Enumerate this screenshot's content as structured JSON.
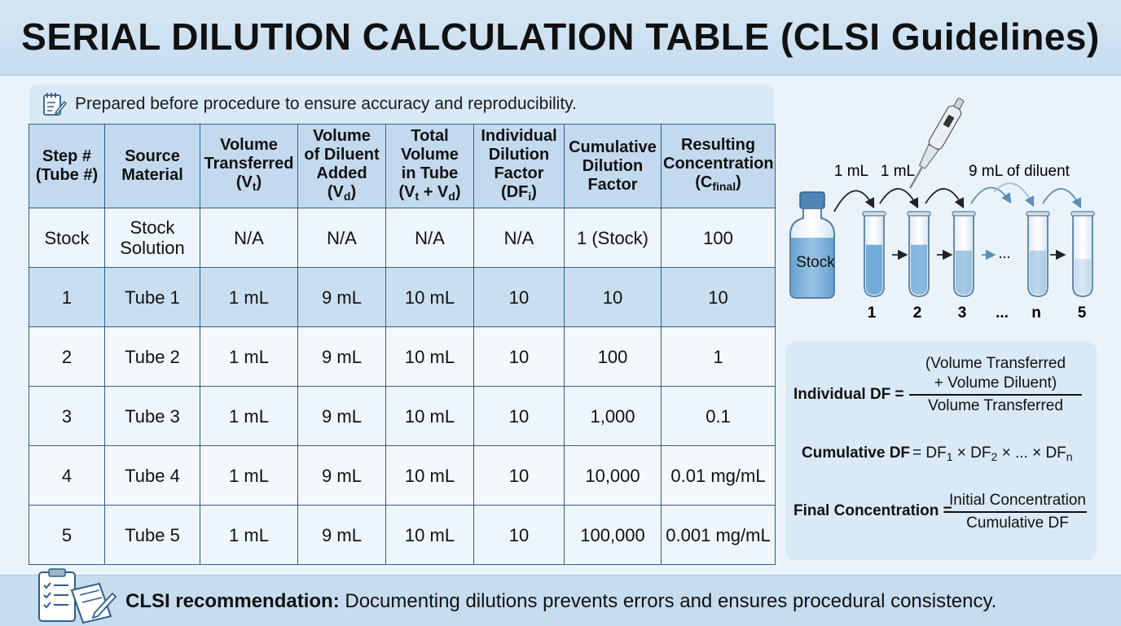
{
  "title": "SERIAL DILUTION CALCULATION TABLE (CLSI Guidelines)",
  "note": {
    "icon": "notepad-pencil-icon",
    "text": "Prepared before procedure to ensure accuracy and reproducibility."
  },
  "table": {
    "headers": [
      {
        "main": "Step #",
        "line2": "(Tube #)",
        "sub": "",
        "tail": ""
      },
      {
        "main": "Source",
        "line2": "Material",
        "sub": "",
        "tail": ""
      },
      {
        "main": "Volume",
        "line2": "Transferred",
        "line3": "(V",
        "sub": "t",
        "tail": ")"
      },
      {
        "main": "Volume",
        "line2": "of Diluent",
        "line3a": "Added",
        "line3": "(V",
        "sub": "d",
        "tail": ")"
      },
      {
        "main": "Total",
        "line2": "Volume",
        "line3a": "in Tube",
        "line3": "(V",
        "sub": "t",
        "mid": " + V",
        "sub2": "d",
        "tail": ")"
      },
      {
        "main": "Individual",
        "line2": "Dilution",
        "line3a": "Factor",
        "line3": "(DF",
        "sub": "i",
        "tail": ")"
      },
      {
        "main": "Cumulative",
        "line2": "Dilution",
        "line3a": "Factor",
        "sub": "",
        "tail": ""
      },
      {
        "main": "Resulting",
        "line2": "Concentration",
        "line3": "(C",
        "sub": "final",
        "tail": ")"
      }
    ],
    "rows": [
      [
        "Stock",
        "Stock\nSolution",
        "N/A",
        "N/A",
        "N/A",
        "N/A",
        "1 (Stock)",
        "100"
      ],
      [
        "1",
        "Tube 1",
        "1 mL",
        "9 mL",
        "10 mL",
        "10",
        "10",
        "10"
      ],
      [
        "2",
        "Tube 2",
        "1 mL",
        "9 mL",
        "10 mL",
        "10",
        "100",
        "1"
      ],
      [
        "3",
        "Tube 3",
        "1 mL",
        "9 mL",
        "10 mL",
        "10",
        "1,000",
        "0.1"
      ],
      [
        "4",
        "Tube 4",
        "1 mL",
        "9 mL",
        "10 mL",
        "10",
        "10,000",
        "0.01 mg/mL"
      ],
      [
        "5",
        "Tube 5",
        "1 mL",
        "9 mL",
        "10 mL",
        "10",
        "100,000",
        "0.001 mg/mL"
      ]
    ]
  },
  "diagram": {
    "transfer_label_1": "1 mL",
    "transfer_label_2": "1 mL",
    "diluent_label": "9 mL of diluent",
    "stock_label": "Stock",
    "ellipsis": "...",
    "tube_labels": [
      "1",
      "2",
      "3",
      "...",
      "n",
      "5"
    ],
    "icons": [
      "stock-bottle-icon",
      "pipette-icon",
      "test-tube-icon"
    ],
    "liquid_color": "#6aa6d4"
  },
  "formulas": {
    "individual_label": "Individual DF =",
    "individual_num_1": "(Volume Transferred",
    "individual_num_2": "+ Volume Diluent)",
    "individual_den": "Volume Transferred",
    "cumulative_label": "Cumulative DF",
    "cumulative_eq": "=",
    "cumulative_rhs_df": "DF",
    "cumulative_rhs_1": "1",
    "cumulative_rhs_times": " × DF",
    "cumulative_rhs_2": "2",
    "cumulative_rhs_mid": " × ... × DF",
    "cumulative_rhs_n": "n",
    "final_label": "Final Concentration =",
    "final_num": "Initial Concentration",
    "final_den": "Cumulative DF"
  },
  "footer": {
    "icon": "clipboard-checklist-icon",
    "bold": "CLSI recommendation:",
    "text": " Documenting dilutions prevents errors and ensures procedural consistency."
  },
  "colors": {
    "header_bg": "#c6dcef",
    "table_border": "#2f5f8a",
    "header_cell_bg": "#c3daee",
    "highlight_row_bg": "#c9dff0"
  }
}
